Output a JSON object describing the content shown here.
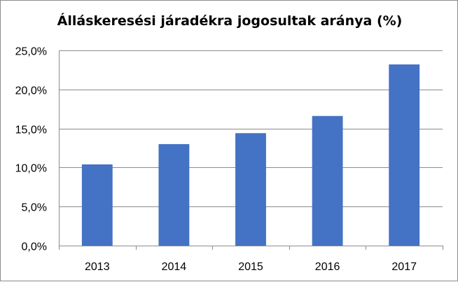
{
  "chart_data": {
    "type": "bar",
    "title": "Álláskeresési járadékra jogosultak aránya (%)",
    "categories": [
      "2013",
      "2014",
      "2015",
      "2016",
      "2017"
    ],
    "values": [
      10.4,
      13.0,
      14.4,
      16.6,
      23.2
    ],
    "ylim": [
      0,
      25
    ],
    "yticks": [
      0,
      5,
      10,
      15,
      20,
      25
    ],
    "ytick_labels": [
      "0,0%",
      "5,0%",
      "10,0%",
      "15,0%",
      "20,0%",
      "25,0%"
    ],
    "xlabel": "",
    "ylabel": "",
    "grid": true,
    "legend": "none",
    "bar_color": "#4472C4",
    "grid_color": "#8c8c8c"
  }
}
